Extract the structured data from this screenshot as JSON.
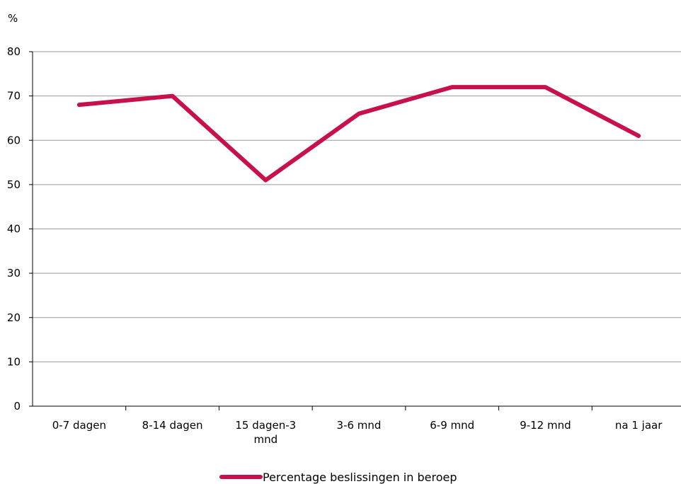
{
  "chart_data": {
    "type": "line",
    "y_unit_label": "%",
    "categories": [
      [
        "0-7 dagen"
      ],
      [
        "8-14 dagen"
      ],
      [
        "15 dagen-3",
        "mnd"
      ],
      [
        "3-6 mnd"
      ],
      [
        "6-9 mnd"
      ],
      [
        "9-12 mnd"
      ],
      [
        "na 1 jaar"
      ]
    ],
    "series": [
      {
        "name": "Percentage beslissingen in beroep",
        "color": "#C8104A",
        "values": [
          68,
          70,
          51,
          66,
          72,
          72,
          61
        ]
      }
    ],
    "ylim": [
      0,
      80
    ],
    "yticks": [
      0,
      10,
      20,
      30,
      40,
      50,
      60,
      70,
      80
    ],
    "grid": true,
    "legend_position": "bottom-center"
  }
}
